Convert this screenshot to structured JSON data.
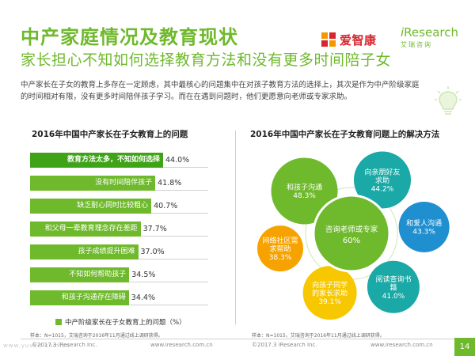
{
  "header": {
    "title": "中产家庭情况及教育现状",
    "subtitle": "家长担心不知如何选择教育方法和没有更多时间陪子女",
    "description": "中产家长在子女的教育上多存在一定顾虑，其中最核心的问题集中在对孩子教育方法的选择上，其次是作为中产阶级家庭的时间相对有限，没有更多时间陪伴孩子学习。而在在遇到问题时，他们更愿意向老师或专家求助。"
  },
  "logos": {
    "azk_text": "爱智康",
    "ir_brand_prefix": "i",
    "ir_brand_rest": "Research",
    "ir_cn": "艾瑞咨询"
  },
  "left_chart": {
    "title": "2016年中国中产家长在子女教育上的问题",
    "legend": "中产阶级家长在子女教育上的问题（%）",
    "source": "样本：N=1015，艾瑞咨询于2016年11月通过线上调研获得。"
  },
  "right_chart": {
    "title": "2016年中国中产家长在子女教育问题上的解决方法",
    "source": "样本：N=1015，艾瑞咨询于2016年11月通过线上调研获得。"
  },
  "footer": {
    "copy_left": "©2017.3  iResearch Inc.",
    "web_left": "www.iresearch.com.cn",
    "copy_right": "©2017.3  iResearch Inc.",
    "web_right": "www.iresearch.com.cn",
    "page": "14",
    "watermark": "www.yuvsit.com.cn"
  },
  "colors": {
    "green": "#6fb92c",
    "dark_green": "#3fa318",
    "teal": "#1aa9a6",
    "blue": "#1f8fd0",
    "orange": "#f6a200",
    "yellow": "#f7c800",
    "red": "#d8252e"
  },
  "chart_data": [
    {
      "type": "bar",
      "orientation": "horizontal",
      "categories": [
        "教育方法太多，不知如何选择",
        "没有时间陪伴孩子",
        "缺乏耐心同时比较粗心",
        "和父母一辈教育理念存在差距",
        "孩子成绩提升困难",
        "不知如何帮助孩子",
        "和孩子沟通存在障碍"
      ],
      "series": [
        {
          "name": "中产阶级家长在子女教育上的问题（%）",
          "values": [
            44.0,
            41.8,
            40.7,
            37.7,
            37.0,
            34.5,
            34.4
          ],
          "labels": [
            "44.0%",
            "41.8%",
            "40.7%",
            "37.7%",
            "37.0%",
            "34.5%",
            "34.4%"
          ]
        }
      ],
      "xlim": [
        0,
        50
      ],
      "title": "2016年中国中产家长在子女教育上的问题"
    },
    {
      "type": "bubble",
      "center": {
        "label": "咨询老师或专家",
        "value": 60,
        "value_label": "60%"
      },
      "items": [
        {
          "label": "向亲朋好友求助",
          "value": 44.2,
          "value_label": "44.2%",
          "color": "#1aa9a6"
        },
        {
          "label": "和爱人沟通",
          "value": 43.3,
          "value_label": "43.3%",
          "color": "#1f8fd0"
        },
        {
          "label": "阅读查询书籍",
          "value": 41.0,
          "value_label": "41.0%",
          "color": "#1aa9a6"
        },
        {
          "label": "向孩子同学的家长求助",
          "value": 39.1,
          "value_label": "39.1%",
          "color": "#f7c800"
        },
        {
          "label": "网络社区需求帮助",
          "value": 38.3,
          "value_label": "38.3%",
          "color": "#f6a200"
        },
        {
          "label": "和孩子沟通",
          "value": 48.3,
          "value_label": "48.3%",
          "color": "#6fb92c"
        }
      ],
      "title": "2016年中国中产家长在子女教育问题上的解决方法"
    }
  ]
}
